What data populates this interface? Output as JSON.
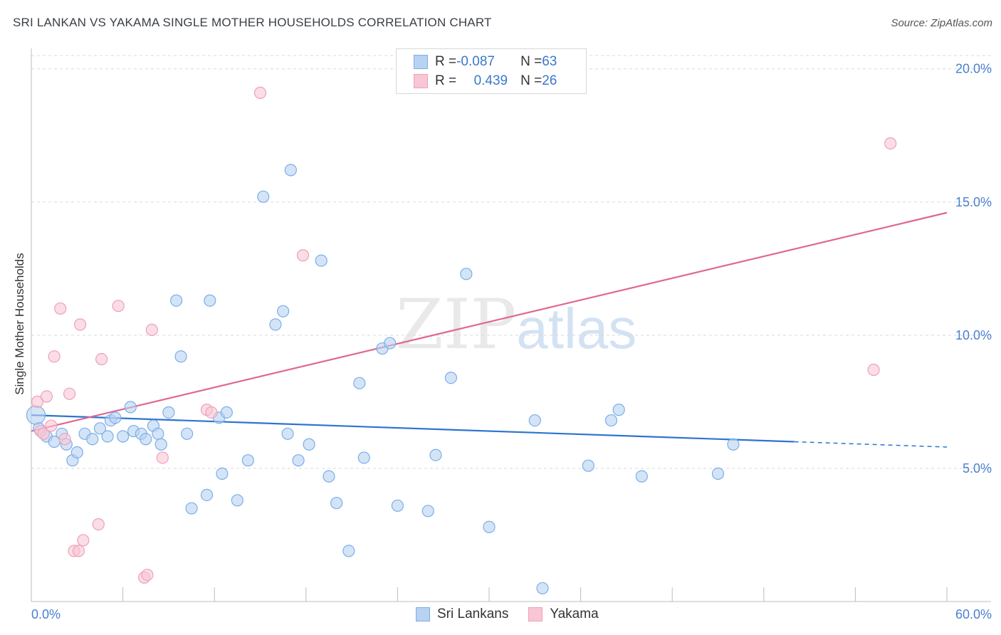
{
  "title": "SRI LANKAN VS YAKAMA SINGLE MOTHER HOUSEHOLDS CORRELATION CHART",
  "source": "Source: ZipAtlas.com",
  "watermark": {
    "zip": "ZIP",
    "atlas": "atlas"
  },
  "legend": {
    "rows": [
      {
        "r_label": "R = ",
        "r_value": "-0.087",
        "n_label": "N = ",
        "n_value": "63"
      },
      {
        "r_label": "R = ",
        "r_value": "0.439",
        "n_label": "N = ",
        "n_value": "26"
      }
    ],
    "series_names": [
      "Sri Lankans",
      "Yakama"
    ]
  },
  "colors": {
    "blue_fill": "#b8d2f2",
    "blue_stroke": "#7aaee8",
    "blue_line": "#2d74d0",
    "pink_fill": "#f8c6d4",
    "pink_stroke": "#eea0b8",
    "pink_line": "#e0688e",
    "tick": "#4a7fd0",
    "grid": "#d9d9d9"
  },
  "chart_data": {
    "type": "scatter",
    "title": "SRI LANKAN VS YAKAMA SINGLE MOTHER HOUSEHOLDS CORRELATION CHART",
    "xlabel": "",
    "ylabel": "Single Mother Households",
    "xlim": [
      0,
      60
    ],
    "ylim": [
      0,
      20.5
    ],
    "x_tick_labels": [
      {
        "value": 0,
        "label": "0.0%"
      },
      {
        "value": 60,
        "label": "60.0%"
      }
    ],
    "y_tick_labels": [
      {
        "value": 5,
        "label": "5.0%"
      },
      {
        "value": 10,
        "label": "10.0%"
      },
      {
        "value": 15,
        "label": "15.0%"
      },
      {
        "value": 20,
        "label": "20.0%"
      }
    ],
    "series": [
      {
        "name": "Sri Lankans",
        "r": -0.087,
        "n": 63,
        "trend": {
          "x0": 0,
          "y0": 7.0,
          "x1": 50,
          "y1": 6.0,
          "dash_x1": 60,
          "dash_y1": 5.8
        },
        "points": [
          [
            0.3,
            7.0
          ],
          [
            0.5,
            6.5
          ],
          [
            1.0,
            6.2
          ],
          [
            1.5,
            6.0
          ],
          [
            2.0,
            6.3
          ],
          [
            2.3,
            5.9
          ],
          [
            2.7,
            5.3
          ],
          [
            3.0,
            5.6
          ],
          [
            3.5,
            6.3
          ],
          [
            4.0,
            6.1
          ],
          [
            4.5,
            6.5
          ],
          [
            5.0,
            6.2
          ],
          [
            5.2,
            6.8
          ],
          [
            5.5,
            6.9
          ],
          [
            6.0,
            6.2
          ],
          [
            6.5,
            7.3
          ],
          [
            6.7,
            6.4
          ],
          [
            7.2,
            6.3
          ],
          [
            7.5,
            6.1
          ],
          [
            8.0,
            6.6
          ],
          [
            8.3,
            6.3
          ],
          [
            8.5,
            5.9
          ],
          [
            9.0,
            7.1
          ],
          [
            9.5,
            11.3
          ],
          [
            9.8,
            9.2
          ],
          [
            10.2,
            6.3
          ],
          [
            10.5,
            3.5
          ],
          [
            11.5,
            4.0
          ],
          [
            11.7,
            11.3
          ],
          [
            12.3,
            6.9
          ],
          [
            12.5,
            4.8
          ],
          [
            12.8,
            7.1
          ],
          [
            13.5,
            3.8
          ],
          [
            14.2,
            5.3
          ],
          [
            15.2,
            15.2
          ],
          [
            16.0,
            10.4
          ],
          [
            16.5,
            10.9
          ],
          [
            16.8,
            6.3
          ],
          [
            17.0,
            16.2
          ],
          [
            17.5,
            5.3
          ],
          [
            18.2,
            5.9
          ],
          [
            19.0,
            12.8
          ],
          [
            19.5,
            4.7
          ],
          [
            20.0,
            3.7
          ],
          [
            20.8,
            1.9
          ],
          [
            21.5,
            8.2
          ],
          [
            21.8,
            5.4
          ],
          [
            23.0,
            9.5
          ],
          [
            23.5,
            9.7
          ],
          [
            24.0,
            3.6
          ],
          [
            26.0,
            3.4
          ],
          [
            26.5,
            5.5
          ],
          [
            27.5,
            8.4
          ],
          [
            28.5,
            12.3
          ],
          [
            30.0,
            2.8
          ],
          [
            33.0,
            6.8
          ],
          [
            33.5,
            0.5
          ],
          [
            36.5,
            5.1
          ],
          [
            38.0,
            6.8
          ],
          [
            38.5,
            7.2
          ],
          [
            40.0,
            4.7
          ],
          [
            45.0,
            4.8
          ],
          [
            46.0,
            5.9
          ]
        ]
      },
      {
        "name": "Yakama",
        "r": 0.439,
        "n": 26,
        "trend": {
          "x0": 0,
          "y0": 6.4,
          "x1": 60,
          "y1": 14.6
        },
        "points": [
          [
            0.4,
            7.5
          ],
          [
            0.6,
            6.4
          ],
          [
            1.0,
            7.7
          ],
          [
            1.3,
            6.6
          ],
          [
            1.5,
            9.2
          ],
          [
            1.9,
            11.0
          ],
          [
            2.2,
            6.1
          ],
          [
            2.5,
            7.8
          ],
          [
            3.2,
            10.4
          ],
          [
            2.8,
            1.9
          ],
          [
            3.1,
            1.9
          ],
          [
            3.4,
            2.3
          ],
          [
            4.4,
            2.9
          ],
          [
            4.6,
            9.1
          ],
          [
            5.7,
            11.1
          ],
          [
            7.4,
            0.9
          ],
          [
            7.6,
            1.0
          ],
          [
            7.9,
            10.2
          ],
          [
            8.6,
            5.4
          ],
          [
            11.5,
            7.2
          ],
          [
            11.8,
            7.1
          ],
          [
            15.0,
            19.1
          ],
          [
            17.8,
            13.0
          ],
          [
            55.2,
            8.7
          ],
          [
            56.3,
            17.2
          ],
          [
            0.8,
            6.3
          ]
        ]
      }
    ]
  }
}
